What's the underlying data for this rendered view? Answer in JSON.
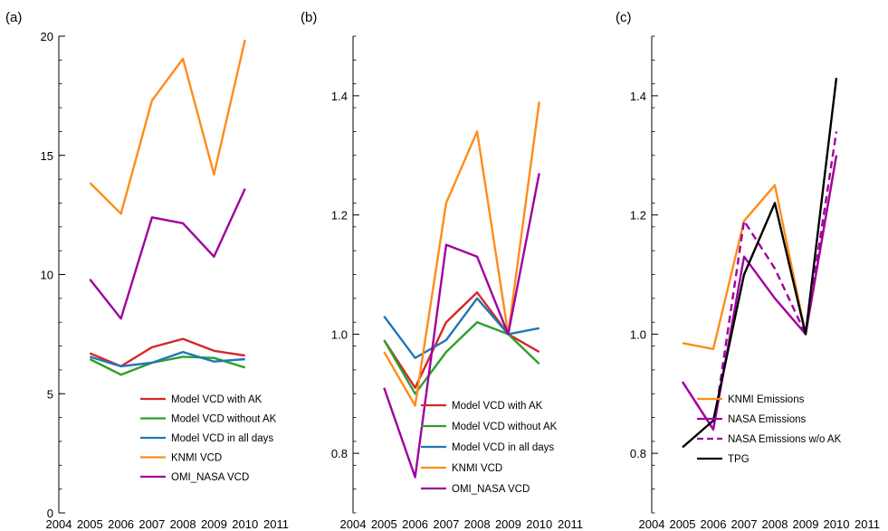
{
  "chart_data": [
    {
      "type": "line",
      "panel_label": "(a)",
      "x": [
        2005,
        2006,
        2007,
        2008,
        2009,
        2010
      ],
      "xlim": [
        2004,
        2011
      ],
      "xticks": [
        "2004",
        "2005",
        "2006",
        "2007",
        "2008",
        "2009",
        "2010",
        "2011"
      ],
      "ylim": [
        0,
        20
      ],
      "yticks": [
        "0",
        "5",
        "10",
        "15",
        "20"
      ],
      "legend_position": "bottom-right",
      "series": [
        {
          "name": "Model VCD with AK",
          "color": "#d62728",
          "dashed": false,
          "values": [
            6.7,
            6.15,
            6.95,
            7.3,
            6.8,
            6.6
          ]
        },
        {
          "name": "Model VCD without AK",
          "color": "#2ca02c",
          "dashed": false,
          "values": [
            6.45,
            5.8,
            6.3,
            6.55,
            6.5,
            6.1
          ]
        },
        {
          "name": "Model VCD in all days",
          "color": "#1f77b4",
          "dashed": false,
          "values": [
            6.55,
            6.15,
            6.3,
            6.75,
            6.35,
            6.45
          ]
        },
        {
          "name": "KNMI VCD",
          "color": "#ff8c1a",
          "dashed": false,
          "values": [
            13.85,
            12.55,
            17.3,
            19.05,
            14.2,
            19.85
          ]
        },
        {
          "name": "OMI_NASA VCD",
          "color": "#a000a0",
          "dashed": false,
          "values": [
            9.8,
            8.15,
            12.4,
            12.15,
            10.75,
            13.6
          ]
        }
      ]
    },
    {
      "type": "line",
      "panel_label": "(b)",
      "x": [
        2005,
        2006,
        2007,
        2008,
        2009,
        2010
      ],
      "xlim": [
        2004,
        2011
      ],
      "xticks": [
        "2004",
        "2005",
        "2006",
        "2007",
        "2008",
        "2009",
        "2010",
        "2011"
      ],
      "ylim": [
        0.7,
        1.5
      ],
      "yticks": [
        "0.8",
        "1.0",
        "1.2",
        "1.4"
      ],
      "legend_position": "bottom-right",
      "series": [
        {
          "name": "Model VCD with AK",
          "color": "#d62728",
          "dashed": false,
          "values": [
            0.99,
            0.91,
            1.02,
            1.07,
            1.0,
            0.97
          ]
        },
        {
          "name": "Model VCD without AK",
          "color": "#2ca02c",
          "dashed": false,
          "values": [
            0.99,
            0.9,
            0.97,
            1.02,
            1.0,
            0.95
          ]
        },
        {
          "name": "Model VCD in all days",
          "color": "#1f77b4",
          "dashed": false,
          "values": [
            1.03,
            0.96,
            0.99,
            1.06,
            1.0,
            1.01
          ]
        },
        {
          "name": "KNMI VCD",
          "color": "#ff8c1a",
          "dashed": false,
          "values": [
            0.97,
            0.88,
            1.22,
            1.34,
            1.0,
            1.39
          ]
        },
        {
          "name": "OMI_NASA VCD",
          "color": "#a000a0",
          "dashed": false,
          "values": [
            0.91,
            0.76,
            1.15,
            1.13,
            1.0,
            1.27
          ]
        }
      ]
    },
    {
      "type": "line",
      "panel_label": "(c)",
      "x": [
        2005,
        2006,
        2007,
        2008,
        2009,
        2010
      ],
      "xlim": [
        2004,
        2011
      ],
      "xticks": [
        "2004",
        "2005",
        "2006",
        "2007",
        "2008",
        "2009",
        "2010",
        "2011"
      ],
      "ylim": [
        0.7,
        1.5
      ],
      "yticks": [
        "0.8",
        "1.0",
        "1.2",
        "1.4"
      ],
      "legend_position": "bottom-right",
      "series": [
        {
          "name": "KNMI Emissions",
          "color": "#ff8c1a",
          "dashed": false,
          "values": [
            0.985,
            0.975,
            1.19,
            1.25,
            1.0,
            1.3
          ]
        },
        {
          "name": "NASA Emissions",
          "color": "#a000a0",
          "dashed": false,
          "values": [
            0.92,
            0.84,
            1.13,
            1.06,
            1.0,
            1.3
          ]
        },
        {
          "name": "NASA Emissions w/o AK",
          "color": "#a000a0",
          "dashed": true,
          "values": [
            0.92,
            0.84,
            1.19,
            1.11,
            1.0,
            1.34
          ]
        },
        {
          "name": "TPG",
          "color": "#000000",
          "dashed": false,
          "values": [
            0.81,
            0.855,
            1.1,
            1.22,
            1.0,
            1.43
          ]
        }
      ]
    }
  ]
}
